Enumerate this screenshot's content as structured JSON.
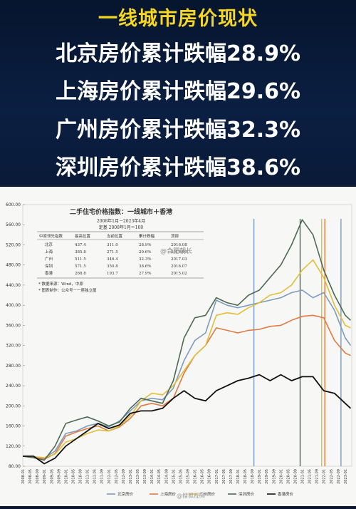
{
  "banner": {
    "title": "一线城市房价现状",
    "lines": [
      "北京房价累计跌幅28.9%",
      "上海房价累计跌幅29.6%",
      "广州房价累计跌幅32.3%",
      "深圳房价累计跌幅38.6%"
    ]
  },
  "chart_data": {
    "type": "line",
    "title": "二手住宅价格指数：一线城市＋香港",
    "subtitle": "2008年1月－2023年4月",
    "note": "定基 2008年1月＝100",
    "ylim": [
      80,
      600
    ],
    "yticks": [
      "600.00",
      "560.00",
      "520.00",
      "480.00",
      "440.00",
      "400.00",
      "360.00",
      "320.00",
      "280.00",
      "240.00",
      "200.00",
      "160.00",
      "120.00",
      "80.00"
    ],
    "x_labels": [
      "2008-01",
      "2008-05",
      "2008-09",
      "2009-01",
      "2009-05",
      "2009-09",
      "2010-01",
      "2010-05",
      "2010-09",
      "2011-01",
      "2011-05",
      "2011-09",
      "2012-01",
      "2012-05",
      "2012-09",
      "2013-01",
      "2013-05",
      "2013-09",
      "2014-01",
      "2014-05",
      "2014-09",
      "2015-01",
      "2015-05",
      "2015-09",
      "2016-01",
      "2016-05",
      "2016-09",
      "2017-01",
      "2017-05",
      "2017-09",
      "2018-01",
      "2018-05",
      "2018-09",
      "2019-01",
      "2019-05",
      "2019-09",
      "2020-01",
      "2020-05",
      "2020-09",
      "2021-01",
      "2021-05",
      "2021-09",
      "2022-01",
      "2022-05",
      "2022-09",
      "2023-01"
    ],
    "x": [
      2008.0,
      2008.5,
      2009.0,
      2009.5,
      2010.0,
      2010.5,
      2011.0,
      2011.5,
      2012.0,
      2012.5,
      2013.0,
      2013.5,
      2014.0,
      2014.5,
      2015.0,
      2015.5,
      2016.0,
      2016.5,
      2017.0,
      2017.5,
      2018.0,
      2018.5,
      2019.0,
      2019.5,
      2020.0,
      2020.5,
      2021.0,
      2021.5,
      2022.0,
      2022.5,
      2023.0,
      2023.25
    ],
    "xlim": [
      2008.0,
      2023.3
    ],
    "series": [
      {
        "name": "北京房价",
        "color": "#7d9bc0",
        "values": [
          100,
          98,
          96,
          110,
          145,
          150,
          160,
          165,
          158,
          170,
          190,
          210,
          215,
          212,
          235,
          290,
          330,
          345,
          410,
          400,
          395,
          400,
          405,
          410,
          415,
          425,
          430,
          415,
          425,
          390,
          335,
          320
        ]
      },
      {
        "name": "上海房价",
        "color": "#e07b45",
        "values": [
          100,
          97,
          94,
          105,
          140,
          148,
          155,
          160,
          150,
          158,
          175,
          200,
          205,
          200,
          215,
          265,
          300,
          320,
          355,
          350,
          345,
          350,
          352,
          358,
          360,
          370,
          378,
          380,
          375,
          330,
          305,
          300
        ]
      },
      {
        "name": "广州房价",
        "color": "#e2bf3a",
        "values": [
          100,
          99,
          97,
          104,
          128,
          135,
          145,
          152,
          150,
          160,
          180,
          210,
          225,
          222,
          240,
          270,
          300,
          320,
          380,
          385,
          382,
          395,
          405,
          420,
          425,
          440,
          470,
          490,
          455,
          400,
          360,
          355
        ]
      },
      {
        "name": "深圳房价",
        "color": "#4d6a55",
        "values": [
          100,
          97,
          92,
          120,
          165,
          172,
          178,
          170,
          160,
          168,
          195,
          215,
          210,
          205,
          250,
          335,
          375,
          380,
          415,
          405,
          400,
          420,
          430,
          455,
          480,
          520,
          570,
          540,
          470,
          420,
          380,
          370
        ]
      },
      {
        "name": "香港房价",
        "color": "#111111",
        "values": [
          100,
          100,
          85,
          96,
          120,
          135,
          150,
          165,
          155,
          162,
          185,
          190,
          190,
          195,
          215,
          230,
          215,
          210,
          230,
          240,
          250,
          255,
          262,
          250,
          262,
          250,
          258,
          258,
          230,
          225,
          205,
          195
        ]
      }
    ],
    "peak_markers": [
      {
        "x": 2018.75,
        "color": "#7d9bc0"
      },
      {
        "x": 2020.9,
        "color": "#4d6a55"
      },
      {
        "x": 2021.9,
        "color": "#e2bf3a"
      },
      {
        "x": 2022.05,
        "color": "#e07b45"
      },
      {
        "x": 2022.8,
        "color": "#7d9bc0"
      }
    ],
    "table": {
      "headers": [
        "中原领先指数",
        "最高位置",
        "当前位置",
        "累计跌幅",
        "顶部"
      ],
      "rows": [
        [
          "北京",
          "437.4",
          "311.0",
          "28.9%",
          "2016.08"
        ],
        [
          "上海",
          "385.8",
          "271.5",
          "29.6%",
          "2016.09"
        ],
        [
          "广州",
          "511.5",
          "346.4",
          "32.3%",
          "2017.03"
        ],
        [
          "深圳",
          "571.5",
          "350.8",
          "38.6%",
          "2016.07"
        ],
        [
          "香港",
          "268.8",
          "193.7",
          "27.9%",
          "2015.02"
        ]
      ],
      "notes": [
        "* 数据来源：Wind，中原",
        "* 图表制作：公众号－一座独立屋"
      ]
    },
    "legend": [
      "北京房价",
      "上海房价",
      "广州房价",
      "深圳房价",
      "香港房价"
    ]
  },
  "watermarks": [
    "@合肥朝长",
    "@搜狐视频"
  ]
}
